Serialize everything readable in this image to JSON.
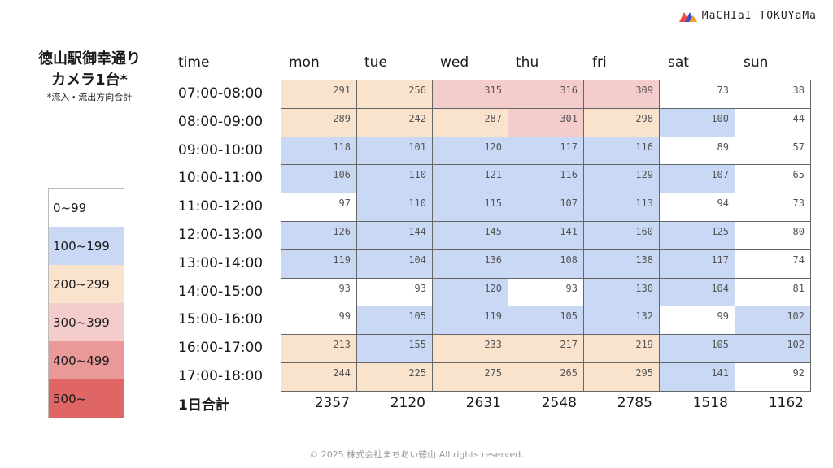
{
  "logo": {
    "text": "MaCHIaI TOKUYaMa",
    "icon": "mountain-logo-icon"
  },
  "title": {
    "line1": "徳山駅御幸通り",
    "line2": "カメラ1台*",
    "note": "*流入・流出方向合計"
  },
  "legend": [
    {
      "label": "0~99",
      "color": "#ffffff"
    },
    {
      "label": "100~199",
      "color": "#c9d9f5"
    },
    {
      "label": "200~299",
      "color": "#fae3cc"
    },
    {
      "label": "300~399",
      "color": "#f4cccc"
    },
    {
      "label": "400~499",
      "color": "#ea9999"
    },
    {
      "label": "500~",
      "color": "#e06666"
    }
  ],
  "table": {
    "time_header": "time",
    "days": [
      "mon",
      "tue",
      "wed",
      "thu",
      "fri",
      "sat",
      "sun"
    ],
    "times": [
      "07:00-08:00",
      "08:00-09:00",
      "09:00-10:00",
      "10:00-11:00",
      "11:00-12:00",
      "12:00-13:00",
      "13:00-14:00",
      "14:00-15:00",
      "15:00-16:00",
      "16:00-17:00",
      "17:00-18:00"
    ],
    "rows": [
      [
        291,
        256,
        315,
        316,
        309,
        73,
        38
      ],
      [
        289,
        242,
        287,
        301,
        298,
        100,
        44
      ],
      [
        118,
        101,
        120,
        117,
        116,
        89,
        57
      ],
      [
        106,
        110,
        121,
        116,
        129,
        107,
        65
      ],
      [
        97,
        110,
        115,
        107,
        113,
        94,
        73
      ],
      [
        126,
        144,
        145,
        141,
        160,
        125,
        80
      ],
      [
        119,
        104,
        136,
        108,
        138,
        117,
        74
      ],
      [
        93,
        93,
        120,
        93,
        130,
        104,
        81
      ],
      [
        99,
        105,
        119,
        105,
        132,
        99,
        102
      ],
      [
        213,
        155,
        233,
        217,
        219,
        105,
        102
      ],
      [
        244,
        225,
        275,
        265,
        295,
        141,
        92
      ]
    ],
    "totals_label": "1日合計",
    "totals": [
      2357,
      2120,
      2631,
      2548,
      2785,
      1518,
      1162
    ]
  },
  "footer": "© 2025 株式会社まちあい徳山  All rights reserved."
}
